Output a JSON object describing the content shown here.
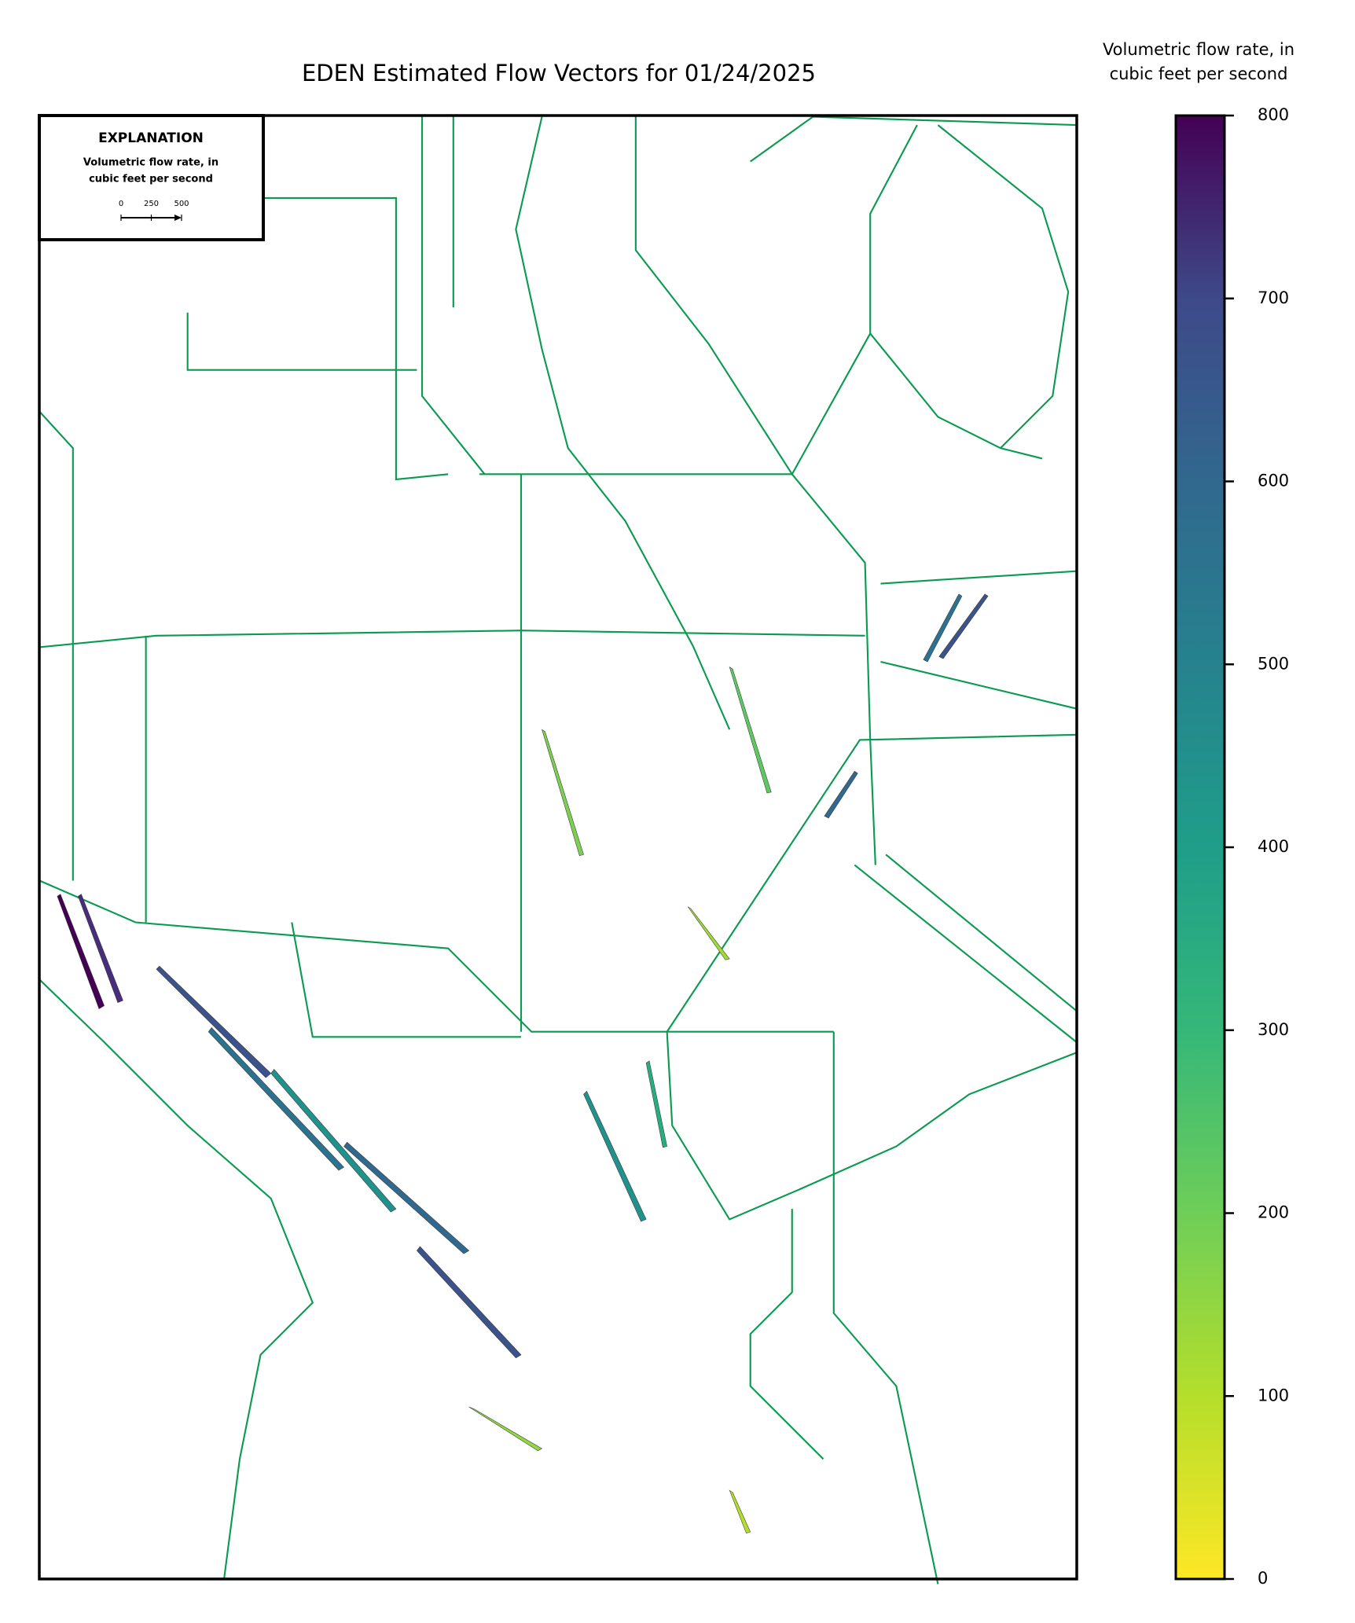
{
  "title": "EDEN Estimated Flow Vectors for 01/24/2025",
  "explanation": {
    "title": "EXPLANATION",
    "label_lines": [
      "Volumetric flow rate, in",
      "cubic feet per second"
    ],
    "scale_ticks": [
      0,
      250,
      500
    ]
  },
  "colorbar": {
    "label_lines": [
      "Volumetric flow rate, in",
      "cubic feet per second"
    ],
    "lim": [
      0,
      800
    ],
    "ticks": [
      0,
      100,
      200,
      300,
      400,
      500,
      600,
      700,
      800
    ],
    "colormap": "viridis_r"
  }
}
